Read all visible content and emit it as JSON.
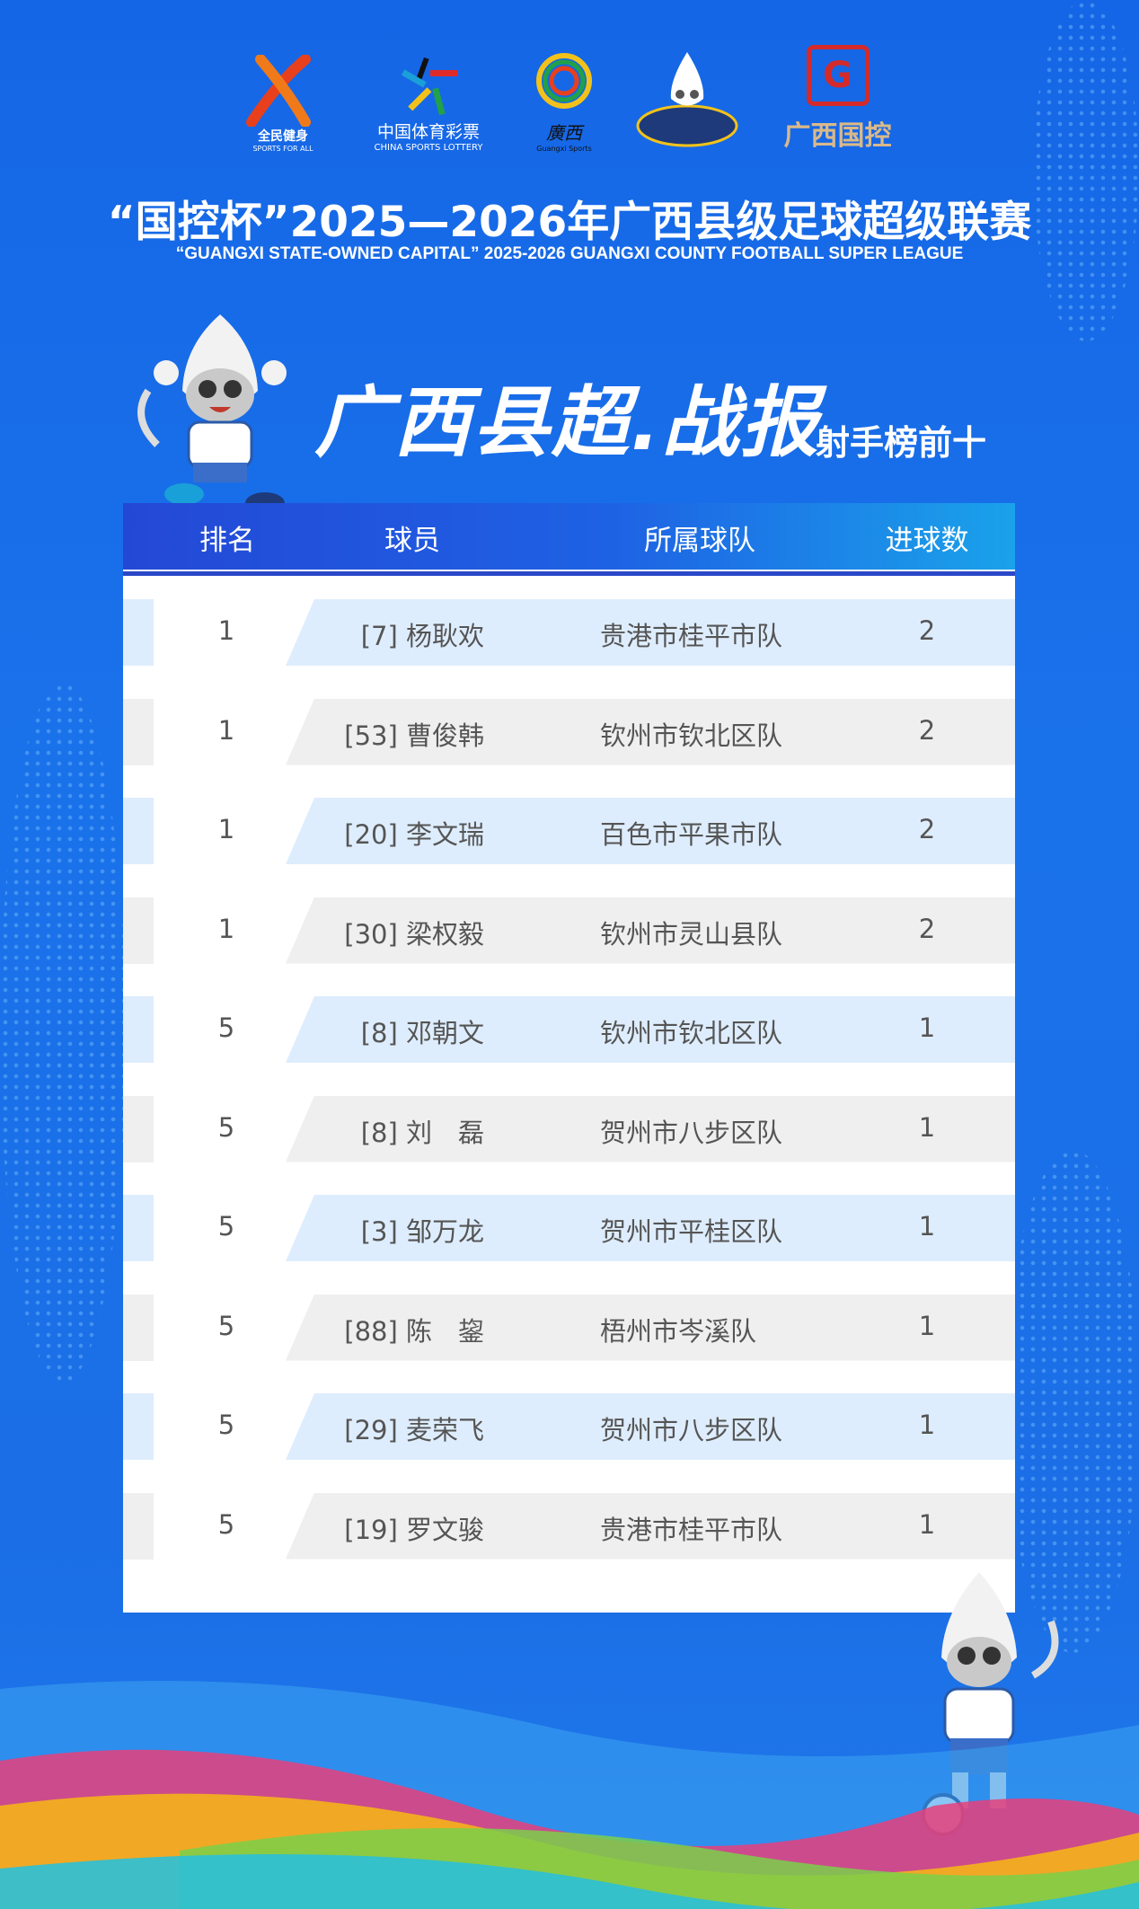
{
  "logos": [
    {
      "name": "sports-for-all",
      "text": "全民健身",
      "sub": "SPORTS FOR ALL"
    },
    {
      "name": "china-sports-lottery",
      "text": "中国体育彩票",
      "sub": "CHINA SPORTS LOTTERY"
    },
    {
      "name": "guangxi-sports",
      "text": "廣西",
      "sub": "Guangxi Sports"
    },
    {
      "name": "league-mascot-badge",
      "text": "",
      "sub": ""
    },
    {
      "name": "guangxi-state-owned",
      "text": "广西国控",
      "sub": ""
    }
  ],
  "title": "“国控杯”2025—2026年广西县级足球超级联赛",
  "subtitle": "“GUANGXI STATE-OWNED CAPITAL” 2025-2026 GUANGXI COUNTY FOOTBALL SUPER LEAGUE",
  "banner": {
    "main": "广西县超.战报",
    "sub": "射手榜前十"
  },
  "table": {
    "headers": [
      "排名",
      "球员",
      "所属球队",
      "进球数"
    ],
    "rows": [
      {
        "rank": "1",
        "player": "[7] 杨耿欢",
        "team": "贵港市桂平市队",
        "goals": "2"
      },
      {
        "rank": "1",
        "player": "[53] 曹俊韩",
        "team": "钦州市钦北区队",
        "goals": "2"
      },
      {
        "rank": "1",
        "player": "[20] 李文瑞",
        "team": "百色市平果市队",
        "goals": "2"
      },
      {
        "rank": "1",
        "player": "[30] 梁权毅",
        "team": "钦州市灵山县队",
        "goals": "2"
      },
      {
        "rank": "5",
        "player": "[8] 邓朝文",
        "team": "钦州市钦北区队",
        "goals": "1"
      },
      {
        "rank": "5",
        "player": "[8] 刘　磊",
        "team": "贺州市八步区队",
        "goals": "1"
      },
      {
        "rank": "5",
        "player": "[3] 邹万龙",
        "team": "贺州市平桂区队",
        "goals": "1"
      },
      {
        "rank": "5",
        "player": "[88] 陈　鋆",
        "team": "梧州市岑溪队",
        "goals": "1"
      },
      {
        "rank": "5",
        "player": "[29] 麦荣飞",
        "team": "贺州市八步区队",
        "goals": "1"
      },
      {
        "rank": "5",
        "player": "[19] 罗文骏",
        "team": "贵港市桂平市队",
        "goals": "1"
      }
    ]
  },
  "colors": {
    "background": "#1a6fe6",
    "row_blue": "#deedfd",
    "row_gray": "#efefef",
    "text": "#555555"
  }
}
